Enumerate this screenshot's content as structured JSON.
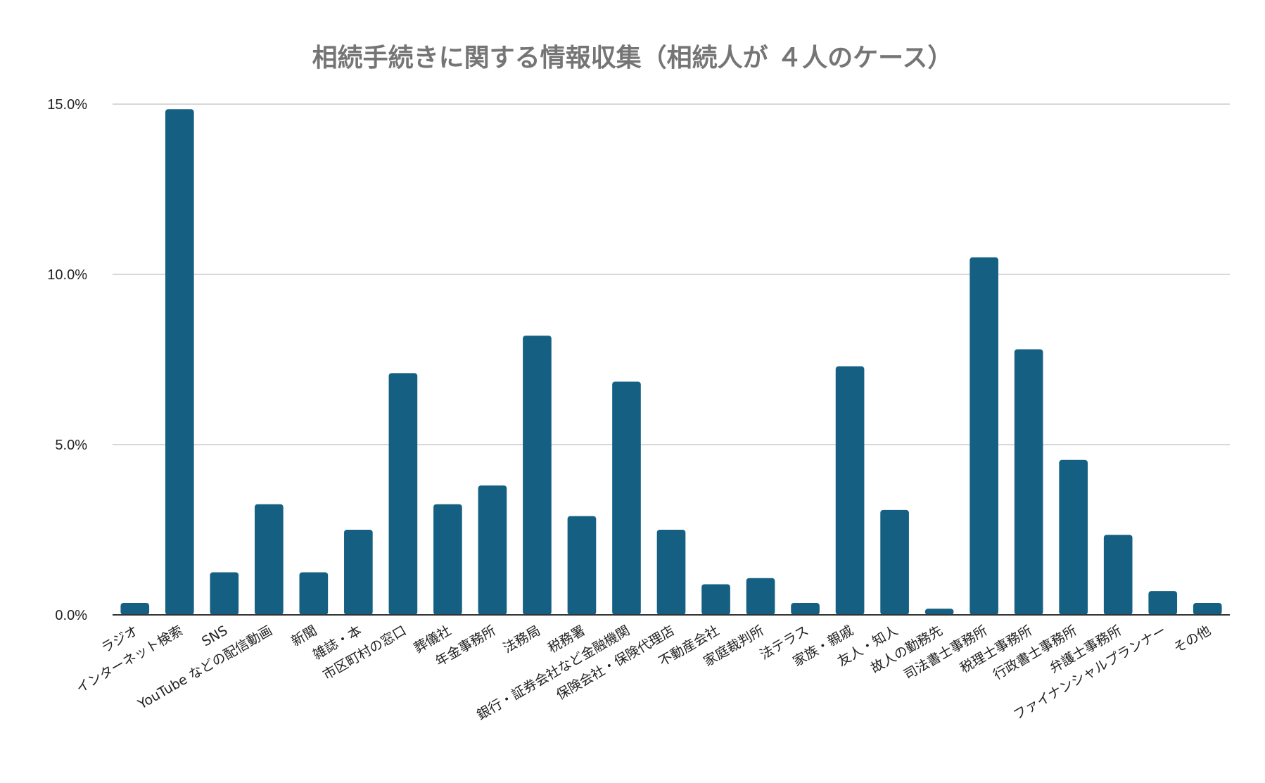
{
  "chart_data": {
    "type": "bar",
    "title": "相続手続きに関する情報収集（相続人が ４人のケース）",
    "xlabel": "",
    "ylabel": "",
    "ylim": [
      0,
      15
    ],
    "yticks": [
      0,
      5,
      10,
      15
    ],
    "ytick_labels": [
      "0.0%",
      "5.0%",
      "10.0%",
      "15.0%"
    ],
    "grid": true,
    "bar_color": "#156082",
    "categories": [
      "ラジオ",
      "インターネット検索",
      "SNS",
      "YouTube などの配信動画",
      "新聞",
      "雑誌・本",
      "市区町村の窓口",
      "葬儀社",
      "年金事務所",
      "法務局",
      "税務署",
      "銀行・証券会社など金融機関",
      "保険会社・保険代理店",
      "不動産会社",
      "家庭裁判所",
      "法テラス",
      "家族・親戚",
      "友人・知人",
      "故人の勤務先",
      "司法書士事務所",
      "税理士事務所",
      "行政書士事務所",
      "弁護士事務所",
      "ファイナンシャルプランナー",
      "その他"
    ],
    "values": [
      0.35,
      14.85,
      1.25,
      3.25,
      1.25,
      2.5,
      7.1,
      3.25,
      3.8,
      8.2,
      2.9,
      6.85,
      2.5,
      0.9,
      1.08,
      0.35,
      7.3,
      3.08,
      0.18,
      10.5,
      7.8,
      4.55,
      2.35,
      0.7,
      0.35
    ]
  }
}
